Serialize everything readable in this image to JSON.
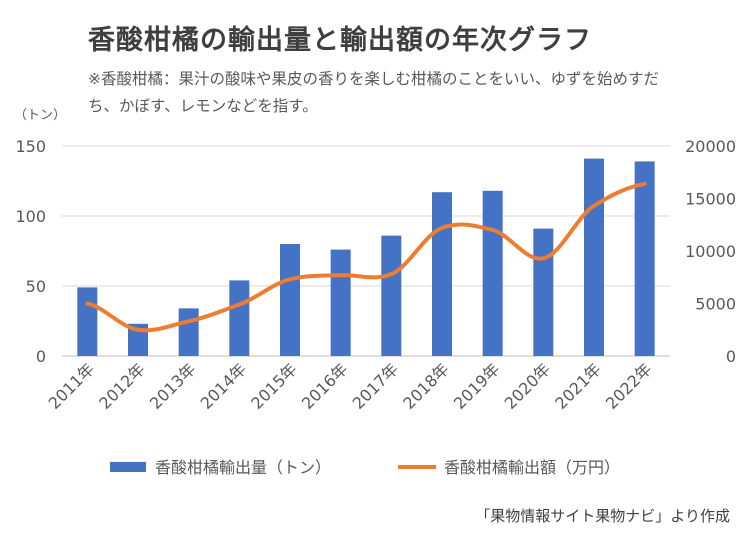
{
  "title": "香酸柑橘の輸出量と輸出額の年次グラフ",
  "note": "※香酸柑橘：果汁の酸味や果皮の香りを楽しむ柑橘のことをいい、ゆずを始めすだち、かぼす、レモンなどを指す。",
  "source": "「果物情報サイト果物ナビ」より作成",
  "colors": {
    "bar": "#4472c4",
    "line": "#ed7d31",
    "grid": "#d9d9d9",
    "axis": "#bfbfbf"
  },
  "chart_data": {
    "type": "bar",
    "categories": [
      "2011年",
      "2012年",
      "2013年",
      "2014年",
      "2015年",
      "2016年",
      "2017年",
      "2018年",
      "2019年",
      "2020年",
      "2021年",
      "2022年"
    ],
    "series": [
      {
        "name": "香酸柑橘輸出量（トン）",
        "type": "bar",
        "axis": "left",
        "values": [
          49,
          23,
          34,
          54,
          80,
          76,
          86,
          117,
          118,
          91,
          141,
          139
        ]
      },
      {
        "name": "香酸柑橘輸出額（万円）",
        "type": "line",
        "axis": "right",
        "values": [
          5000,
          2500,
          3300,
          4900,
          7300,
          7700,
          7800,
          12200,
          12000,
          9300,
          14300,
          16400
        ]
      }
    ],
    "y_left": {
      "unit": "（トン）",
      "ylim": [
        0,
        150
      ],
      "ticks": [
        "0",
        "50",
        "100",
        "150"
      ]
    },
    "y_right": {
      "ylim": [
        0,
        20000
      ],
      "ticks": [
        "0",
        "5000",
        "10000",
        "15000",
        "20000"
      ]
    },
    "grid": true,
    "legend_position": "bottom"
  }
}
